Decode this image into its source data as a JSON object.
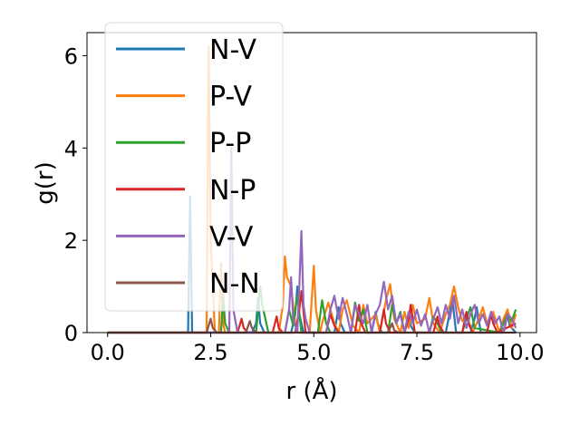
{
  "chart_data": {
    "type": "line",
    "xlabel": "r (Å)",
    "ylabel": "g(r)",
    "xlim": [
      -0.5,
      10.4
    ],
    "ylim": [
      0,
      6.5
    ],
    "xticks": [
      0.0,
      2.5,
      5.0,
      7.5,
      10.0
    ],
    "xtick_labels": [
      "0.0",
      "2.5",
      "5.0",
      "7.5",
      "10.0"
    ],
    "yticks": [
      0,
      2,
      4,
      6
    ],
    "ytick_labels": [
      "0",
      "2",
      "4",
      "6"
    ],
    "grid": false,
    "legend_position": "upper-left",
    "series": [
      {
        "name": "N-V",
        "color": "#1f77b4",
        "x": [
          0,
          1.85,
          1.95,
          2.0,
          2.05,
          2.15,
          3.5,
          3.6,
          3.65,
          3.7,
          3.8,
          4.45,
          4.55,
          4.6,
          4.65,
          4.75,
          5.5,
          5.6,
          5.65,
          5.75,
          6.4,
          6.5,
          6.55,
          6.65,
          7.2,
          7.3,
          7.35,
          7.45,
          8.2,
          8.3,
          8.35,
          8.45,
          8.8,
          8.9,
          8.95,
          9.05,
          9.6,
          9.7,
          9.75,
          9.9
        ],
        "y": [
          0,
          0,
          0,
          2.95,
          0,
          0,
          0,
          0.2,
          0.75,
          0.2,
          0,
          0,
          0.4,
          1.0,
          0.4,
          0,
          0,
          0.55,
          0.2,
          0,
          0,
          0.45,
          0.2,
          0,
          0,
          0.4,
          0.15,
          0,
          0,
          0.45,
          0.8,
          0,
          0,
          0.3,
          0.55,
          0,
          0,
          0.4,
          0.15,
          0
        ]
      },
      {
        "name": "P-V",
        "color": "#ff7f0e",
        "x": [
          0,
          2.3,
          2.4,
          2.45,
          2.5,
          2.6,
          2.7,
          2.75,
          2.8,
          2.85,
          2.95,
          4.15,
          4.25,
          4.3,
          4.35,
          4.45,
          4.5,
          4.55,
          4.6,
          4.7,
          4.9,
          5.0,
          5.05,
          5.15,
          5.2,
          5.35,
          5.5,
          5.6,
          5.7,
          5.8,
          5.95,
          6.1,
          6.2,
          6.3,
          6.5,
          6.6,
          6.75,
          6.85,
          6.95,
          7.1,
          7.2,
          7.3,
          7.4,
          7.5,
          7.7,
          7.8,
          7.9,
          8.05,
          8.2,
          8.3,
          8.4,
          8.5,
          8.6,
          8.7,
          8.85,
          9.0,
          9.1,
          9.2,
          9.35,
          9.5,
          9.6,
          9.7,
          9.8,
          9.9
        ],
        "y": [
          0,
          0,
          0,
          6.2,
          2.0,
          0,
          0,
          1.5,
          0.2,
          0,
          0,
          0,
          0.6,
          1.65,
          1.2,
          1.0,
          0.6,
          0.2,
          0,
          0,
          0,
          1.45,
          0.5,
          0,
          0.2,
          0.65,
          0.2,
          0,
          0.5,
          0.7,
          0.15,
          0,
          0.6,
          0.2,
          0.4,
          0,
          0.7,
          1.05,
          0.3,
          0,
          0.45,
          0.1,
          0.6,
          0.2,
          0.3,
          0.75,
          0.2,
          0,
          0.4,
          0.6,
          1.0,
          0.55,
          0.25,
          0.4,
          0,
          0.3,
          0.55,
          0.2,
          0.45,
          0,
          0.3,
          0.5,
          0.1,
          0.4
        ]
      },
      {
        "name": "P-P",
        "color": "#2ca02c",
        "x": [
          0,
          2.65,
          2.75,
          2.8,
          2.85,
          2.95,
          3.6,
          3.7,
          3.75,
          3.85,
          3.9,
          4.3,
          4.4,
          4.5,
          4.6,
          4.7,
          5.1,
          5.2,
          5.3,
          5.4,
          5.9,
          6.0,
          6.1,
          6.2,
          6.3,
          6.8,
          6.9,
          7.0,
          7.1,
          7.2,
          7.8,
          7.9,
          8.0,
          8.1,
          8.6,
          8.7,
          8.8,
          8.9,
          9.5,
          9.6,
          9.7,
          9.8,
          9.9
        ],
        "y": [
          0,
          0,
          0,
          0.8,
          0.2,
          0,
          0,
          1.0,
          0.6,
          0.2,
          0,
          0,
          0.5,
          0.15,
          0.8,
          0,
          0,
          0.7,
          0.2,
          0,
          0,
          0.65,
          0.25,
          0.5,
          0,
          0,
          0.6,
          0.2,
          0.45,
          0,
          0,
          0.35,
          0.2,
          0,
          0,
          0.3,
          0.55,
          0.1,
          0,
          0.2,
          0.4,
          0.25,
          0.5
        ]
      },
      {
        "name": "N-P",
        "color": "#d62728",
        "x": [
          0,
          3.15,
          3.25,
          3.3,
          3.4,
          4.0,
          4.1,
          4.15,
          4.25,
          4.55,
          4.65,
          4.7,
          4.8,
          5.3,
          5.4,
          5.5,
          5.6,
          6.0,
          6.1,
          6.15,
          6.25,
          6.6,
          6.7,
          6.75,
          6.85,
          7.2,
          7.3,
          7.35,
          7.45,
          7.9,
          8.0,
          8.05,
          8.15,
          8.6,
          8.7,
          8.75,
          8.85,
          9.2,
          9.3,
          9.35,
          9.45,
          9.9
        ],
        "y": [
          0,
          0,
          0.3,
          0.1,
          0,
          0,
          0.35,
          0.1,
          0,
          0,
          0.5,
          0.9,
          0,
          0,
          0.4,
          0.15,
          0,
          0,
          0.6,
          0.2,
          0,
          0,
          0.5,
          0.2,
          0,
          0,
          0.3,
          0.6,
          0,
          0,
          0.35,
          0.15,
          0,
          0,
          0.45,
          0.2,
          0,
          0,
          0.4,
          0.2,
          0,
          0.2
        ]
      },
      {
        "name": "V-V",
        "color": "#9467bd",
        "x": [
          0,
          2.85,
          2.95,
          3.0,
          3.05,
          3.15,
          4.3,
          4.4,
          4.45,
          4.5,
          4.6,
          4.65,
          4.7,
          4.75,
          4.8,
          4.9,
          5.3,
          5.4,
          5.5,
          5.6,
          5.7,
          5.8,
          5.9,
          6.0,
          6.2,
          6.3,
          6.4,
          6.5,
          6.6,
          6.7,
          6.8,
          6.9,
          7.0,
          7.1,
          7.2,
          7.3,
          7.4,
          7.5,
          7.6,
          7.7,
          7.8,
          7.9,
          8.0,
          8.1,
          8.2,
          8.3,
          8.4,
          8.5,
          8.6,
          8.7,
          8.8,
          8.9,
          9.0,
          9.1,
          9.2,
          9.3,
          9.4,
          9.5,
          9.6,
          9.7,
          9.8,
          9.9
        ],
        "y": [
          0,
          0,
          0,
          4.0,
          0.5,
          0,
          0,
          0.5,
          1.2,
          0.3,
          0,
          1.0,
          2.2,
          0.6,
          0.3,
          0,
          0,
          0.5,
          0.8,
          0.3,
          0.75,
          0.4,
          0,
          0.6,
          0.2,
          0.6,
          0,
          0.4,
          0.6,
          1.1,
          0.5,
          0.8,
          0.2,
          0.4,
          0,
          0.45,
          0.2,
          0.5,
          0.15,
          0.4,
          0,
          0.3,
          0.55,
          0.2,
          0.6,
          0.3,
          0.8,
          0.2,
          0.5,
          0.1,
          0.4,
          0.6,
          0.2,
          0.4,
          0.15,
          0.45,
          0.2,
          0.35,
          0,
          0.4,
          0.3,
          0.1
        ]
      },
      {
        "name": "N-N",
        "color": "#8c564b",
        "x": [
          0,
          2.4,
          2.5,
          2.55,
          2.65,
          3.35,
          3.45,
          3.5,
          3.6,
          6.8,
          6.9,
          6.95,
          7.05,
          9.9
        ],
        "y": [
          0,
          0,
          0.3,
          0.1,
          0,
          0,
          0.25,
          0.1,
          0,
          0,
          0.2,
          0.05,
          0,
          0
        ]
      }
    ]
  }
}
